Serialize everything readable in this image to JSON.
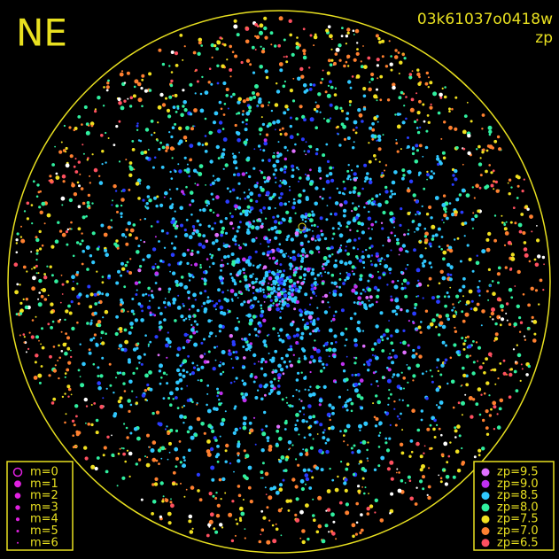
{
  "header": {
    "corner": "NE",
    "frame": "03k61037o0418w",
    "mode": "zp"
  },
  "magnitude_legend": {
    "items": [
      "m=0",
      "m=1",
      "m=2",
      "m=3",
      "m=4",
      "m=5",
      "m=6"
    ],
    "color": "#e020e0"
  },
  "zp_legend": {
    "items": [
      {
        "label": "zp=9.5",
        "color": "#e070ff"
      },
      {
        "label": "zp=9.0",
        "color": "#c030f0"
      },
      {
        "label": "zp=8.5",
        "color": "#30c8ff"
      },
      {
        "label": "zp=8.0",
        "color": "#30f0a0"
      },
      {
        "label": "zp=7.5",
        "color": "#f0e020"
      },
      {
        "label": "zp=7.0",
        "color": "#ff8030"
      },
      {
        "label": "zp=6.5",
        "color": "#ff5060"
      }
    ]
  },
  "frame_color": "#e8e020"
}
